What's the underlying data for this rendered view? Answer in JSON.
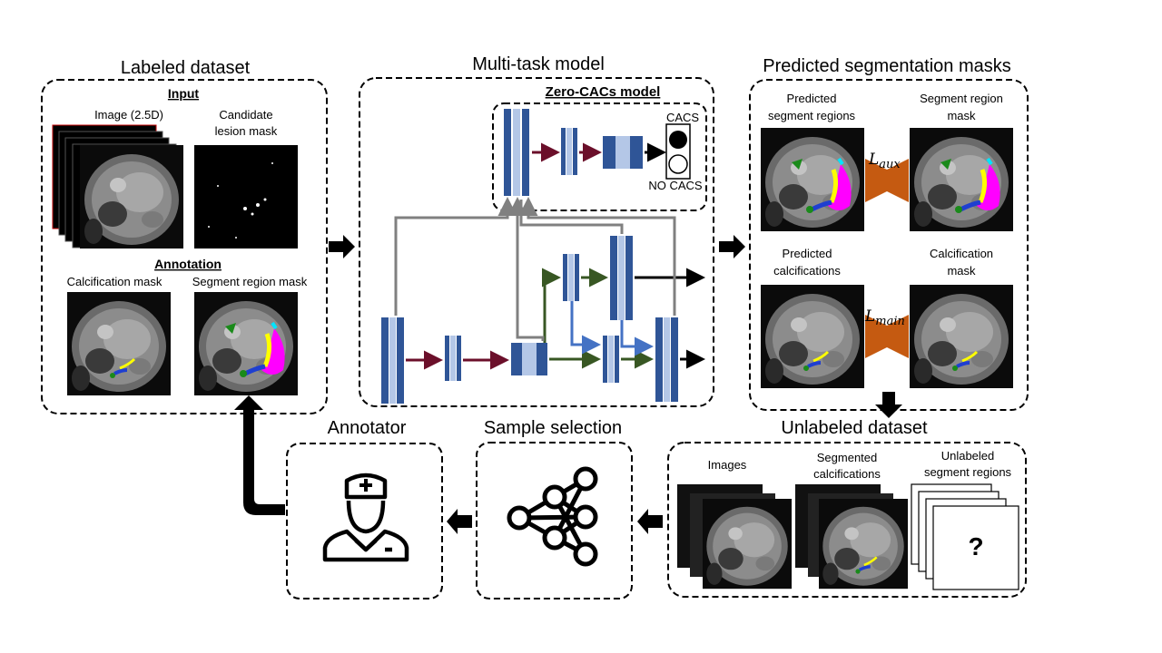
{
  "sections": {
    "labeled_dataset": {
      "title": "Labeled dataset",
      "input_heading": "Input",
      "image_label": "Image (2.5D)",
      "candidate_label_line1": "Candidate",
      "candidate_label_line2": "lesion mask",
      "annotation_heading": "Annotation",
      "calc_mask_label": "Calcification mask",
      "segment_mask_label": "Segment region mask"
    },
    "multitask_model": {
      "title": "Multi-task model",
      "zero_cacs_title": "Zero-CACs model",
      "cacs_label": "CACS",
      "no_cacs_label": "NO CACS"
    },
    "predicted_masks": {
      "title": "Predicted segmentation masks",
      "pred_segment_line1": "Predicted",
      "pred_segment_line2": "segment regions",
      "segment_mask_line1": "Segment region",
      "segment_mask_line2": "mask",
      "pred_calc_line1": "Predicted",
      "pred_calc_line2": "calcifications",
      "calc_mask_line1": "Calcification",
      "calc_mask_line2": "mask",
      "loss_aux_base": "L",
      "loss_aux_sub": "aux",
      "loss_main_base": "L",
      "loss_main_sub": "main"
    },
    "unlabeled_dataset": {
      "title": "Unlabeled dataset",
      "images_label": "Images",
      "seg_calc_line1": "Segmented",
      "seg_calc_line2": "calcifications",
      "unl_seg_line1": "Unlabeled",
      "unl_seg_line2": "segment regions",
      "unknown_mark": "?"
    },
    "sample_selection": {
      "title": "Sample selection"
    },
    "annotator": {
      "title": "Annotator"
    }
  },
  "colors": {
    "block_dark": "#2f5597",
    "block_light": "#b4c7e7",
    "arrow_maroon": "#6b0f2a",
    "arrow_green": "#385723",
    "arrow_blue": "#4472c4",
    "arrow_gray": "#808080",
    "loss_arrow": "#c55a11",
    "segment_magenta": "#ff00ff",
    "segment_yellow": "#ffff00",
    "segment_green": "#1a8a1a",
    "segment_blue": "#1f3fd0",
    "segment_cyan": "#00e5ff"
  },
  "icons": {
    "annotator": "doctor-icon",
    "sample_selection": "neural-network-icon",
    "flow": "block-arrow-icon"
  }
}
